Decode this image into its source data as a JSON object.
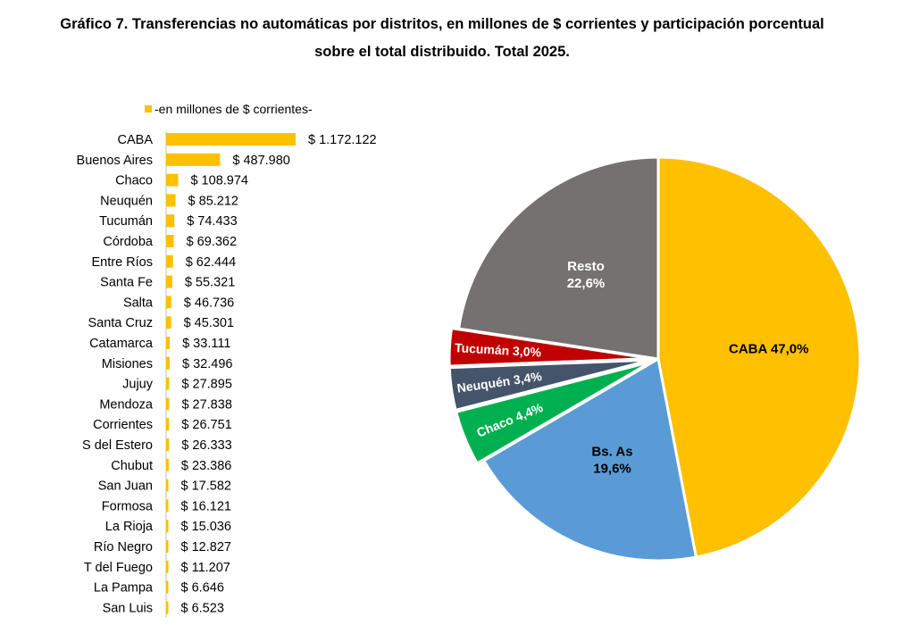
{
  "title_line1": "Gráfico 7. Transferencias no automáticas por distritos, en millones de $ corrientes y participación porcentual",
  "title_line2": "sobre el total distribuido. Total 2025.",
  "chart_data": [
    {
      "type": "bar",
      "orientation": "horizontal",
      "legend": {
        "label": "-en millones de $ corrientes-",
        "position": "top"
      },
      "color": "#FFC000",
      "categories": [
        "CABA",
        "Buenos Aires",
        "Chaco",
        "Neuquén",
        "Tucumán",
        "Córdoba",
        "Entre Ríos",
        "Santa Fe",
        "Salta",
        "Santa Cruz",
        "Catamarca",
        "Misiones",
        "Jujuy",
        "Mendoza",
        "Corrientes",
        "S del Estero",
        "Chubut",
        "San Juan",
        "Formosa",
        "La Rioja",
        "Río Negro",
        "T del Fuego",
        "La Pampa",
        "San Luis"
      ],
      "values": [
        1172122,
        487980,
        108974,
        85212,
        74433,
        69362,
        62444,
        55321,
        46736,
        45301,
        33111,
        32496,
        27895,
        27838,
        26751,
        26333,
        23386,
        17582,
        16121,
        15036,
        12827,
        11207,
        6646,
        6523
      ],
      "value_labels": [
        "$ 1.172.122",
        "$ 487.980",
        "$ 108.974",
        "$ 85.212",
        "$ 74.433",
        "$ 69.362",
        "$ 62.444",
        "$ 55.321",
        "$ 46.736",
        "$ 45.301",
        "$ 33.111",
        "$ 32.496",
        "$ 27.895",
        "$ 27.838",
        "$ 26.751",
        "$ 26.333",
        "$ 23.386",
        "$ 17.582",
        "$ 16.121",
        "$ 15.036",
        "$ 12.827",
        "$ 11.207",
        "$ 6.646",
        "$ 6.523"
      ],
      "grid": false
    },
    {
      "type": "pie",
      "slices": [
        {
          "name": "CABA",
          "value": 47.0,
          "label_lines": [
            "CABA 47,0%"
          ],
          "color": "#FFC000",
          "text_color": "#000000",
          "rotated": false
        },
        {
          "name": "Bs. As",
          "value": 19.6,
          "label_lines": [
            "Bs. As",
            "19,6%"
          ],
          "color": "#5B9BD5",
          "text_color": "#000000",
          "rotated": false
        },
        {
          "name": "Chaco",
          "value": 4.4,
          "label_lines": [
            "Chaco 4,4%"
          ],
          "color": "#00B050",
          "text_color": "#ffffff",
          "rotated": true
        },
        {
          "name": "Neuquén",
          "value": 3.4,
          "label_lines": [
            "Neuquén 3,4%"
          ],
          "color": "#44546A",
          "text_color": "#ffffff",
          "rotated": true
        },
        {
          "name": "Tucumán",
          "value": 3.0,
          "label_lines": [
            "Tucumán 3,0%"
          ],
          "color": "#C00000",
          "text_color": "#ffffff",
          "rotated": true
        },
        {
          "name": "Resto",
          "value": 22.6,
          "label_lines": [
            "Resto",
            "22,6%"
          ],
          "color": "#767171",
          "text_color": "#ffffff",
          "rotated": false
        }
      ]
    }
  ]
}
